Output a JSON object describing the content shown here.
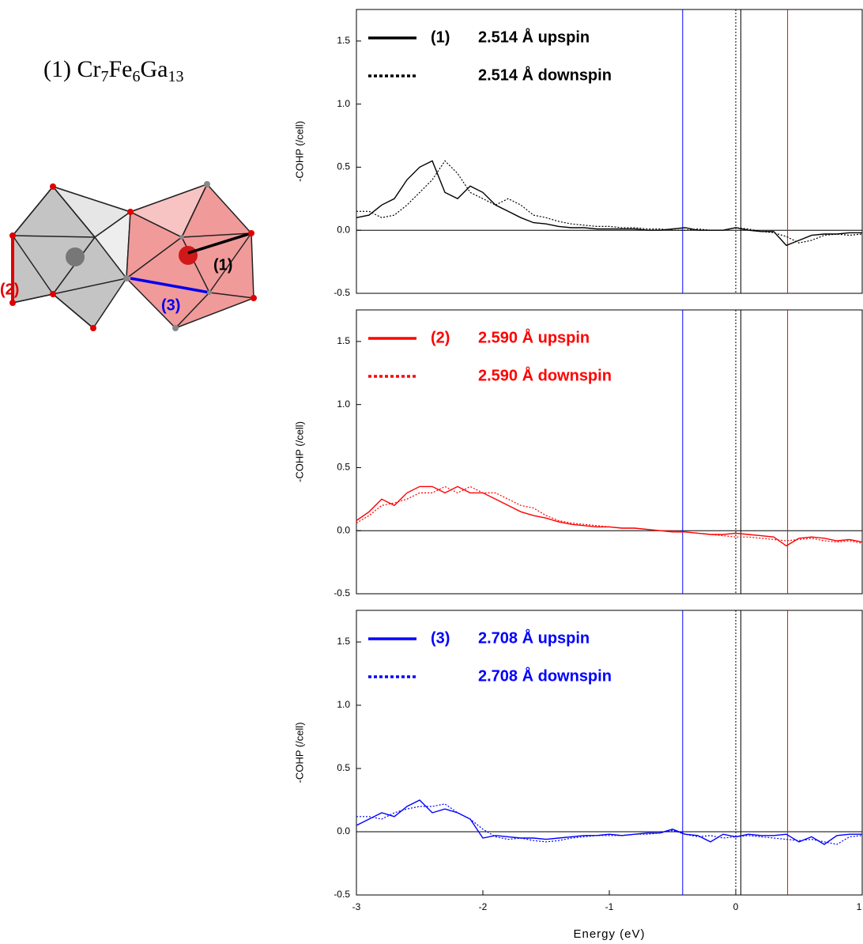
{
  "structure": {
    "title_parts": [
      "(1) Cr",
      "7",
      "Fe",
      "6",
      "Ga",
      "13"
    ],
    "bond_labels": [
      "(1)",
      "(2)",
      "(3)"
    ]
  },
  "chart_data": [
    {
      "type": "line",
      "ylabel": "-COHP (/cell)",
      "legend_tag": "(1)",
      "xlim": [
        -3,
        1
      ],
      "ylim": [
        -0.5,
        1.75
      ],
      "yticks": [
        -0.5,
        {
          "value": 0,
          "label": "0.0"
        },
        0.5,
        {
          "value": 1,
          "label": "1.0"
        },
        1.5
      ],
      "vlines": [
        {
          "value": -0.42,
          "color": "#0000ff",
          "style": "solid"
        },
        {
          "value": 0,
          "color": "#000000",
          "style": "dotted"
        },
        {
          "value": 0.04,
          "color": "#000000",
          "style": "solid"
        },
        {
          "value": 0.41,
          "color": "#ff0000",
          "style": "solid"
        }
      ],
      "x": [
        -3,
        -2.9,
        -2.8,
        -2.7,
        -2.6,
        -2.5,
        -2.4,
        -2.3,
        -2.2,
        -2.1,
        -2,
        -1.9,
        -1.8,
        -1.7,
        -1.6,
        -1.5,
        -1.4,
        -1.3,
        -1.2,
        -1.1,
        -1,
        -0.9,
        -0.8,
        -0.7,
        -0.6,
        -0.5,
        -0.4,
        -0.3,
        -0.2,
        -0.1,
        0,
        0.1,
        0.2,
        0.3,
        0.4,
        0.5,
        0.6,
        0.7,
        0.8,
        0.9,
        1
      ],
      "series": [
        {
          "name": "2.514 Å upspin",
          "color": "#000000",
          "dash": "solid",
          "values": [
            0.1,
            0.12,
            0.2,
            0.25,
            0.4,
            0.5,
            0.55,
            0.3,
            0.25,
            0.35,
            0.3,
            0.2,
            0.15,
            0.1,
            0.06,
            0.05,
            0.03,
            0.02,
            0.02,
            0.01,
            0.01,
            0.01,
            0.01,
            0,
            0,
            0.01,
            0.02,
            0,
            0,
            0,
            0.02,
            0,
            -0.01,
            -0.01,
            -0.12,
            -0.08,
            -0.04,
            -0.03,
            -0.03,
            -0.02,
            -0.02
          ]
        },
        {
          "name": "2.514 Å downspin",
          "color": "#000000",
          "dash": "dotted",
          "values": [
            0.15,
            0.15,
            0.1,
            0.12,
            0.2,
            0.3,
            0.4,
            0.55,
            0.45,
            0.3,
            0.25,
            0.2,
            0.25,
            0.2,
            0.12,
            0.1,
            0.07,
            0.05,
            0.04,
            0.03,
            0.03,
            0.02,
            0.02,
            0.01,
            0.01,
            0,
            0,
            0.01,
            0,
            0,
            0.02,
            0.01,
            -0.01,
            -0.02,
            -0.05,
            -0.1,
            -0.08,
            -0.04,
            -0.03,
            -0.04,
            -0.03
          ]
        }
      ]
    },
    {
      "type": "line",
      "ylabel": "-COHP (/cell)",
      "legend_tag": "(2)",
      "xlim": [
        -3,
        1
      ],
      "ylim": [
        -0.5,
        1.75
      ],
      "yticks": [
        -0.5,
        {
          "value": 0,
          "label": "0.0"
        },
        0.5,
        {
          "value": 1,
          "label": "1.0"
        },
        1.5
      ],
      "vlines": [
        {
          "value": -0.42,
          "color": "#0000ff",
          "style": "solid"
        },
        {
          "value": 0,
          "color": "#000000",
          "style": "dotted"
        },
        {
          "value": 0.04,
          "color": "#000000",
          "style": "solid"
        },
        {
          "value": 0.41,
          "color": "#ff0000",
          "style": "solid"
        }
      ],
      "x": [
        -3,
        -2.9,
        -2.8,
        -2.7,
        -2.6,
        -2.5,
        -2.4,
        -2.3,
        -2.2,
        -2.1,
        -2,
        -1.9,
        -1.8,
        -1.7,
        -1.6,
        -1.5,
        -1.4,
        -1.3,
        -1.2,
        -1.1,
        -1,
        -0.9,
        -0.8,
        -0.7,
        -0.6,
        -0.5,
        -0.4,
        -0.3,
        -0.2,
        -0.1,
        0,
        0.1,
        0.2,
        0.3,
        0.4,
        0.5,
        0.6,
        0.7,
        0.8,
        0.9,
        1
      ],
      "series": [
        {
          "name": "2.590 Å upspin",
          "color": "#ff0000",
          "dash": "solid",
          "values": [
            0.08,
            0.15,
            0.25,
            0.2,
            0.3,
            0.35,
            0.35,
            0.3,
            0.35,
            0.3,
            0.3,
            0.25,
            0.2,
            0.15,
            0.12,
            0.1,
            0.07,
            0.05,
            0.04,
            0.03,
            0.03,
            0.02,
            0.02,
            0.01,
            0,
            -0.01,
            -0.01,
            -0.02,
            -0.03,
            -0.03,
            -0.02,
            -0.03,
            -0.04,
            -0.05,
            -0.12,
            -0.06,
            -0.05,
            -0.06,
            -0.08,
            -0.07,
            -0.09
          ]
        },
        {
          "name": "2.590 Å downspin",
          "color": "#ff0000",
          "dash": "dotted",
          "values": [
            0.06,
            0.12,
            0.2,
            0.22,
            0.25,
            0.3,
            0.3,
            0.35,
            0.3,
            0.35,
            0.3,
            0.3,
            0.25,
            0.2,
            0.18,
            0.12,
            0.08,
            0.06,
            0.05,
            0.04,
            0.03,
            0.02,
            0.02,
            0.01,
            0,
            0,
            -0.01,
            -0.02,
            -0.03,
            -0.04,
            -0.05,
            -0.05,
            -0.06,
            -0.07,
            -0.08,
            -0.07,
            -0.06,
            -0.08,
            -0.09,
            -0.08,
            -0.1
          ]
        }
      ]
    },
    {
      "type": "line",
      "ylabel": "-COHP (/cell)",
      "xlabel": "Energy (eV)",
      "legend_tag": "(3)",
      "xlim": [
        -3,
        1
      ],
      "ylim": [
        -0.5,
        1.75
      ],
      "xticks": [
        -3,
        -2,
        -1,
        0,
        1
      ],
      "yticks": [
        -0.5,
        {
          "value": 0,
          "label": "0.0"
        },
        0.5,
        {
          "value": 1,
          "label": "1.0"
        },
        1.5
      ],
      "vlines": [
        {
          "value": -0.42,
          "color": "#0000ff",
          "style": "solid"
        },
        {
          "value": 0,
          "color": "#000000",
          "style": "dotted"
        },
        {
          "value": 0.04,
          "color": "#000000",
          "style": "solid"
        },
        {
          "value": 0.41,
          "color": "#ff0000",
          "style": "solid"
        }
      ],
      "x": [
        -3,
        -2.9,
        -2.8,
        -2.7,
        -2.6,
        -2.5,
        -2.4,
        -2.3,
        -2.2,
        -2.1,
        -2,
        -1.9,
        -1.8,
        -1.7,
        -1.6,
        -1.5,
        -1.4,
        -1.3,
        -1.2,
        -1.1,
        -1,
        -0.9,
        -0.8,
        -0.7,
        -0.6,
        -0.5,
        -0.4,
        -0.3,
        -0.2,
        -0.1,
        0,
        0.1,
        0.2,
        0.3,
        0.4,
        0.5,
        0.6,
        0.7,
        0.8,
        0.9,
        1
      ],
      "series": [
        {
          "name": "2.708 Å upspin",
          "color": "#0000ff",
          "dash": "solid",
          "values": [
            0.05,
            0.1,
            0.15,
            0.12,
            0.2,
            0.25,
            0.15,
            0.18,
            0.15,
            0.1,
            -0.05,
            -0.03,
            -0.04,
            -0.05,
            -0.05,
            -0.06,
            -0.05,
            -0.04,
            -0.03,
            -0.03,
            -0.02,
            -0.03,
            -0.02,
            -0.01,
            -0.01,
            0.02,
            -0.02,
            -0.03,
            -0.08,
            -0.02,
            -0.04,
            -0.02,
            -0.03,
            -0.03,
            -0.02,
            -0.08,
            -0.04,
            -0.1,
            -0.03,
            -0.02,
            -0.02
          ]
        },
        {
          "name": "2.708 Å downspin",
          "color": "#0000ff",
          "dash": "dotted",
          "values": [
            0.12,
            0.12,
            0.1,
            0.15,
            0.18,
            0.2,
            0.2,
            0.22,
            0.15,
            0.1,
            0.02,
            -0.04,
            -0.06,
            -0.05,
            -0.07,
            -0.08,
            -0.07,
            -0.05,
            -0.04,
            -0.03,
            -0.03,
            -0.03,
            -0.02,
            -0.02,
            -0.01,
            0.01,
            -0.02,
            -0.04,
            -0.03,
            -0.05,
            -0.04,
            -0.03,
            -0.04,
            -0.05,
            -0.06,
            -0.07,
            -0.06,
            -0.08,
            -0.1,
            -0.04,
            -0.03
          ]
        }
      ]
    }
  ]
}
